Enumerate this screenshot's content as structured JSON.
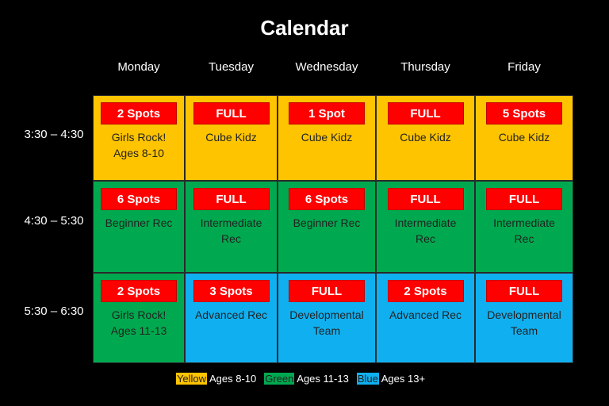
{
  "title": "Calendar",
  "colors": {
    "yellow": "#ffc400",
    "green": "#00a94f",
    "blue": "#10b0f0",
    "badge": "#ff0000"
  },
  "days": [
    "Monday",
    "Tuesday",
    "Wednesday",
    "Thursday",
    "Friday"
  ],
  "times": [
    "3:30 – 4:30",
    "4:30 – 5:30",
    "5:30 – 6:30"
  ],
  "rows": [
    [
      {
        "badge": "2 Spots",
        "label": "Girls Rock!\nAges 8-10",
        "color": "yellow"
      },
      {
        "badge": "FULL",
        "label": "Cube Kidz",
        "color": "yellow"
      },
      {
        "badge": "1 Spot",
        "label": "Cube Kidz",
        "color": "yellow"
      },
      {
        "badge": "FULL",
        "label": "Cube Kidz",
        "color": "yellow"
      },
      {
        "badge": "5 Spots",
        "label": "Cube Kidz",
        "color": "yellow"
      }
    ],
    [
      {
        "badge": "6 Spots",
        "label": "Beginner Rec",
        "color": "green"
      },
      {
        "badge": "FULL",
        "label": "Intermediate\nRec",
        "color": "green"
      },
      {
        "badge": "6 Spots",
        "label": "Beginner Rec",
        "color": "green"
      },
      {
        "badge": "FULL",
        "label": "Intermediate\nRec",
        "color": "green"
      },
      {
        "badge": "FULL",
        "label": "Intermediate\nRec",
        "color": "green"
      }
    ],
    [
      {
        "badge": "2 Spots",
        "label": "Girls Rock!\nAges 11-13",
        "color": "green"
      },
      {
        "badge": "3 Spots",
        "label": "Advanced Rec",
        "color": "blue"
      },
      {
        "badge": "FULL",
        "label": "Developmental\nTeam",
        "color": "blue"
      },
      {
        "badge": "2 Spots",
        "label": "Advanced Rec",
        "color": "blue"
      },
      {
        "badge": "FULL",
        "label": "Developmental\nTeam",
        "color": "blue"
      }
    ]
  ],
  "legend": [
    {
      "swatch": "Yellow",
      "text": "Ages 8-10",
      "color": "yellow"
    },
    {
      "swatch": "Green",
      "text": "Ages 11-13",
      "color": "green"
    },
    {
      "swatch": "Blue",
      "text": "Ages 13+",
      "color": "blue"
    }
  ]
}
